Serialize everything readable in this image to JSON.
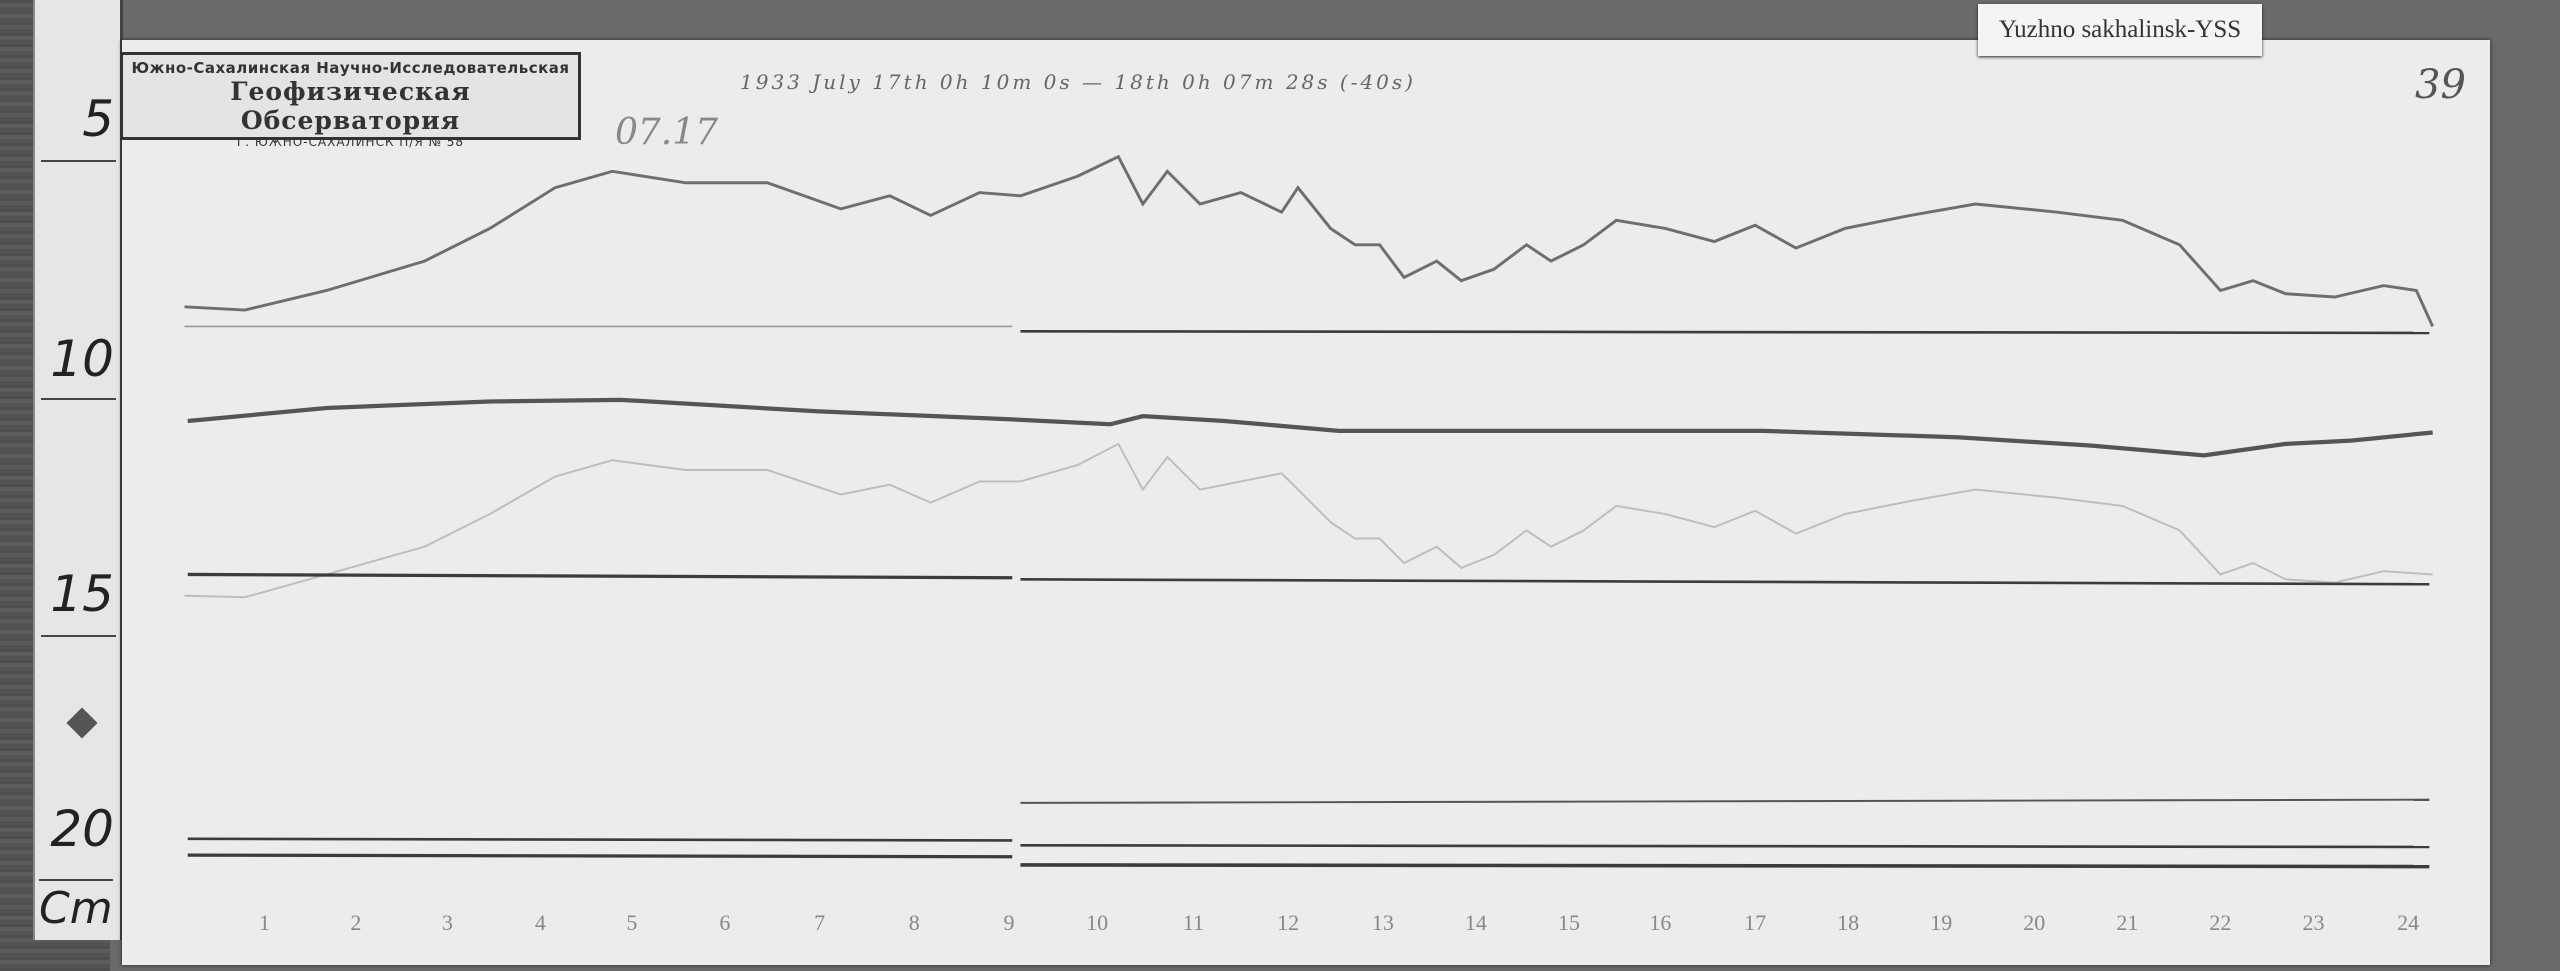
{
  "station_label": "Yuzhno sakhalinsk-YSS",
  "sheet_number": "39",
  "date_mark": "07.17",
  "header_note": "1933  July 17th  0h 10m 0s  —  18th  0h 07m 28s (-40s)",
  "stamp": {
    "line1": "Южно-Сахалинская Научно-Исследовательская",
    "line2": "Геофизическая Обсерватория",
    "line3": "Г. ЮЖНО-САХАЛИНСК  П/Я № 58"
  },
  "ruler": {
    "marks": [
      "5",
      "10",
      "15",
      "20"
    ],
    "unit": "Cm"
  },
  "hour_labels": [
    "1",
    "2",
    "3",
    "4",
    "5",
    "6",
    "7",
    "8",
    "9",
    "10",
    "11",
    "12",
    "13",
    "14",
    "15",
    "16",
    "17",
    "18",
    "19",
    "20",
    "21",
    "22",
    "23",
    "24"
  ],
  "colors": {
    "paper": "#ececec",
    "trace": "#6e6e6e",
    "baseline": "#3c3c3c",
    "background": "#5a5a5a"
  }
}
